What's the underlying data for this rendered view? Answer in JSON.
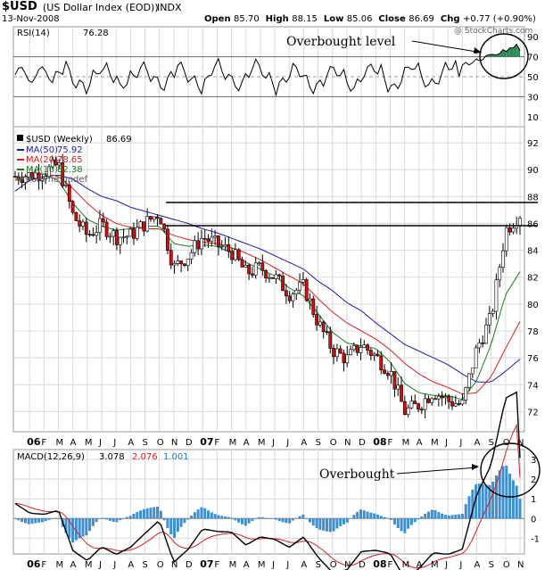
{
  "header": {
    "symbol": "$USD",
    "name": "(US Dollar Index (EOD))",
    "exchange": "INDX",
    "date": "13-Nov-2008",
    "open_label": "Open",
    "open": "85.70",
    "high_label": "High",
    "high": "88.15",
    "low_label": "Low",
    "low": "85.06",
    "close_label": "Close",
    "close": "86.69",
    "chg_label": "Chg",
    "chg": "+0.77 (+0.90%)",
    "watermark": "@ StockCharts.com"
  },
  "rsi": {
    "label": "RSI(14)",
    "value": "76.28",
    "annotation": "Overbought level",
    "ticks": [
      90,
      70,
      50,
      30,
      10
    ]
  },
  "price": {
    "label": "$USD (Weekly)",
    "value": "86.69",
    "legend": [
      {
        "label": "MA(50)",
        "value": "75.92",
        "color": "#1a1aa8"
      },
      {
        "label": "MA(20)",
        "value": "78.65",
        "color": "#d42020"
      },
      {
        "label": "MA(10)",
        "value": "82.38",
        "color": "#1f7a1f"
      },
      {
        "label": "Volume undef",
        "value": "",
        "color": "#555555"
      }
    ],
    "ticks": [
      92,
      90,
      88,
      86,
      84,
      82,
      80,
      78,
      76,
      74,
      72
    ],
    "ylim": [
      70.5,
      93.2
    ]
  },
  "macd": {
    "label": "MACD(12,26,9)",
    "macd_value": "3.078",
    "signal_value": "2.076",
    "hist_value": "1.001",
    "annotation": "Overbought",
    "ticks": [
      3,
      2,
      1,
      0,
      -1
    ]
  },
  "xaxis": {
    "labels": [
      "06",
      "F",
      "M",
      "A",
      "M",
      "J",
      "J",
      "A",
      "S",
      "O",
      "N",
      "D",
      "07",
      "F",
      "M",
      "A",
      "M",
      "J",
      "J",
      "A",
      "S",
      "O",
      "N",
      "D",
      "08",
      "F",
      "M",
      "A",
      "M",
      "J",
      "J",
      "A",
      "S",
      "O",
      "N"
    ]
  },
  "colors": {
    "up_candle": "#ffffff",
    "down_candle": "#cc1111",
    "rsi_line": "#000000",
    "rsi_fill_over": "#2e8b57",
    "rsi_fill_under": "#9b3030",
    "macd_line": "#000000",
    "signal_line": "#d42020",
    "histogram": "#3d8fd0",
    "grid": "#d8d8d8"
  },
  "chart_data": {
    "type": "line",
    "title": "$USD (US Dollar Index (EOD)) INDX",
    "xlabel": "",
    "ylabel": "",
    "x": [
      "Dec-2005",
      "Jan-2006",
      "Feb-2006",
      "Mar-2006",
      "Apr-2006",
      "May-2006",
      "Jun-2006",
      "Jul-2006",
      "Aug-2006",
      "Sep-2006",
      "Oct-2006",
      "Nov-2006",
      "Dec-2006",
      "Jan-2007",
      "Feb-2007",
      "Mar-2007",
      "Apr-2007",
      "May-2007",
      "Jun-2007",
      "Jul-2007",
      "Aug-2007",
      "Sep-2007",
      "Oct-2007",
      "Nov-2007",
      "Dec-2007",
      "Jan-2008",
      "Feb-2008",
      "Mar-2008",
      "Apr-2008",
      "May-2008",
      "Jun-2008",
      "Jul-2008",
      "Aug-2008",
      "Sep-2008",
      "Oct-2008",
      "Nov-2008"
    ],
    "series": [
      {
        "name": "$USD",
        "values": [
          89.5,
          89.6,
          89.8,
          90.4,
          86.6,
          85.1,
          85.9,
          85.0,
          85.1,
          86.0,
          86.8,
          82.7,
          83.6,
          85.0,
          84.4,
          83.9,
          82.3,
          82.7,
          82.0,
          80.8,
          81.3,
          78.6,
          76.6,
          75.9,
          77.0,
          76.1,
          75.0,
          72.0,
          72.5,
          73.5,
          72.8,
          72.5,
          76.7,
          79.0,
          85.5,
          86.7
        ]
      },
      {
        "name": "MA(50)",
        "values": [
          88.4,
          89.2,
          89.5,
          89.6,
          89.3,
          88.6,
          88.0,
          87.7,
          87.2,
          86.9,
          86.6,
          86.3,
          86.0,
          85.6,
          85.3,
          84.9,
          84.5,
          84.1,
          83.6,
          83.1,
          82.6,
          81.7,
          81.0,
          80.1,
          79.5,
          78.6,
          77.8,
          77.0,
          76.5,
          76.0,
          75.5,
          74.8,
          74.2,
          74.2,
          75.0,
          75.9
        ]
      },
      {
        "name": "MA(20)",
        "values": [
          89.2,
          89.5,
          89.7,
          89.5,
          88.6,
          87.5,
          86.6,
          86.0,
          85.7,
          85.6,
          85.6,
          85.1,
          84.8,
          84.6,
          84.5,
          84.2,
          83.8,
          83.3,
          82.7,
          82.1,
          81.5,
          80.4,
          79.4,
          78.6,
          78.0,
          77.4,
          76.6,
          75.6,
          74.8,
          74.2,
          73.8,
          73.3,
          73.4,
          74.6,
          76.7,
          78.7
        ]
      },
      {
        "name": "MA(10)",
        "values": [
          89.3,
          89.6,
          89.7,
          89.2,
          87.5,
          86.3,
          85.8,
          85.5,
          85.6,
          85.8,
          85.8,
          84.5,
          84.3,
          84.4,
          84.3,
          83.8,
          83.1,
          82.6,
          82.1,
          81.2,
          80.6,
          79.3,
          77.9,
          77.1,
          76.9,
          76.7,
          75.7,
          74.1,
          73.4,
          73.2,
          73.2,
          72.9,
          74.3,
          77.0,
          80.7,
          82.4
        ]
      }
    ],
    "rsi": {
      "label": "RSI(14)",
      "last": 76.28,
      "ylim": [
        0,
        100
      ],
      "levels": [
        70,
        30
      ]
    },
    "macd": {
      "label": "MACD(12,26,9)",
      "macd": 3.078,
      "signal": 2.076,
      "histogram": 1.001
    },
    "grid": true,
    "legend": "top-left"
  }
}
